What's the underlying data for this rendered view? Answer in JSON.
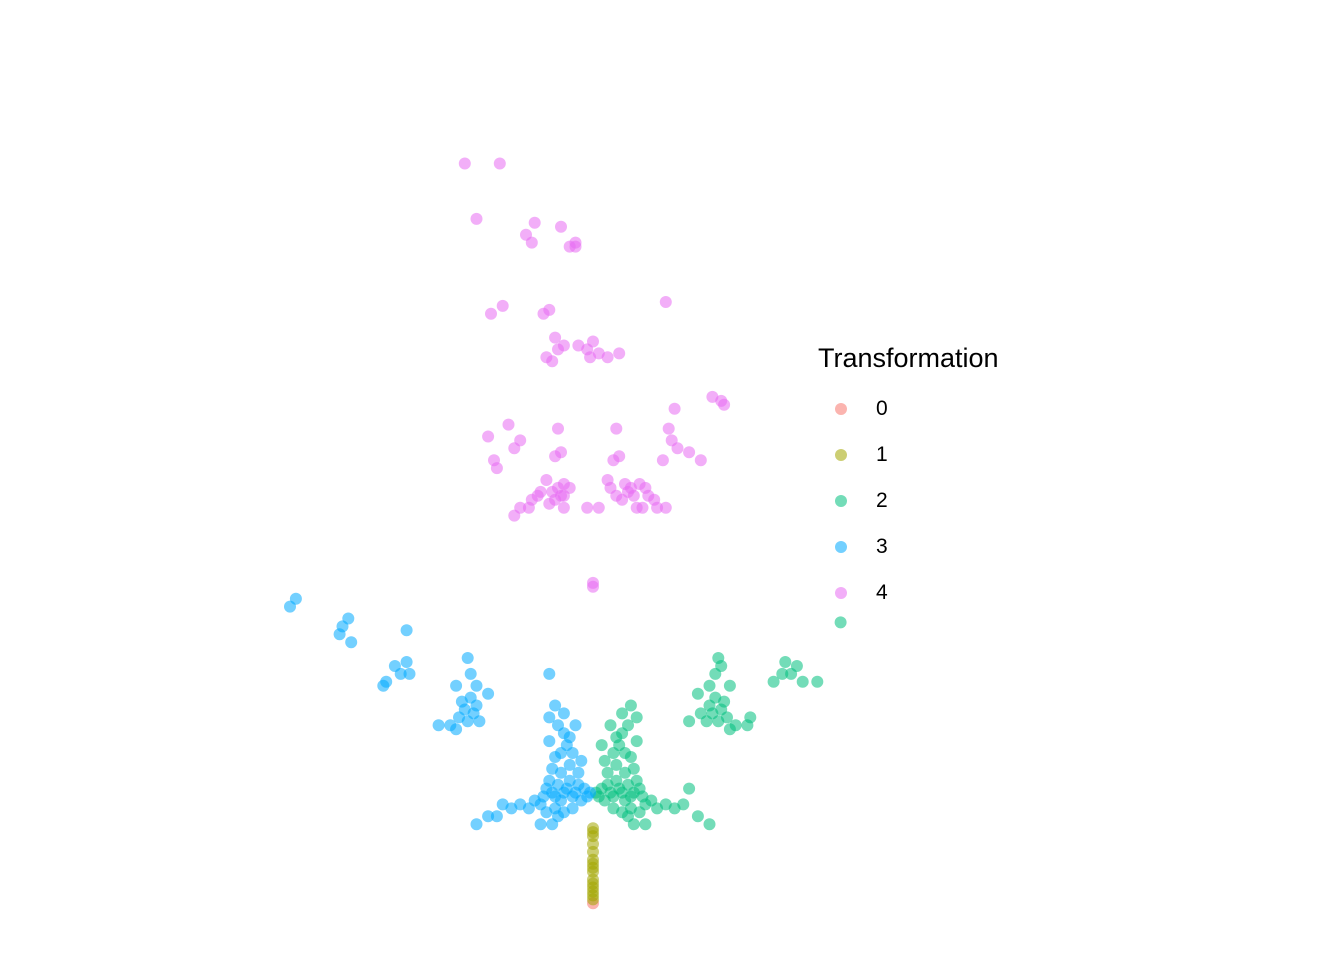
{
  "chart_data": {
    "type": "scatter",
    "title": "",
    "xlabel": "",
    "ylabel": "",
    "axes_visible": false,
    "grid": false,
    "xlim": [
      -1.15,
      1.15
    ],
    "ylim": [
      -0.08,
      2.22
    ],
    "point_alpha": 0.55,
    "legend": {
      "title": "Transformation",
      "position": "right",
      "entries": [
        "0",
        "1",
        "2",
        "3",
        "4"
      ]
    },
    "series": [
      {
        "name": "0",
        "color": "#F8766D",
        "points": [
          [
            0.0,
            0.0
          ]
        ]
      },
      {
        "name": "1",
        "color": "#A3A500",
        "points": [
          [
            0.0,
            0.01
          ],
          [
            0.0,
            0.02
          ],
          [
            0.0,
            0.03
          ],
          [
            0.0,
            0.04
          ],
          [
            0.0,
            0.05
          ],
          [
            0.0,
            0.06
          ],
          [
            0.0,
            0.08
          ],
          [
            0.0,
            0.09
          ],
          [
            0.0,
            0.1
          ],
          [
            0.0,
            0.11
          ],
          [
            0.0,
            0.13
          ],
          [
            0.0,
            0.15
          ],
          [
            0.0,
            0.17
          ],
          [
            0.0,
            0.18
          ],
          [
            0.0,
            0.19
          ]
        ]
      },
      {
        "name": "2",
        "color": "#00BF7D",
        "points": [
          [
            0.01,
            0.28
          ],
          [
            0.02,
            0.27
          ],
          [
            0.03,
            0.29
          ],
          [
            0.04,
            0.26
          ],
          [
            0.05,
            0.3
          ],
          [
            0.06,
            0.28
          ],
          [
            0.07,
            0.27
          ],
          [
            0.08,
            0.31
          ],
          [
            0.09,
            0.29
          ],
          [
            0.1,
            0.28
          ],
          [
            0.11,
            0.26
          ],
          [
            0.12,
            0.3
          ],
          [
            0.13,
            0.27
          ],
          [
            0.14,
            0.28
          ],
          [
            0.15,
            0.31
          ],
          [
            0.16,
            0.29
          ],
          [
            0.17,
            0.27
          ],
          [
            0.18,
            0.25
          ],
          [
            0.05,
            0.33
          ],
          [
            0.08,
            0.35
          ],
          [
            0.11,
            0.33
          ],
          [
            0.14,
            0.34
          ],
          [
            0.07,
            0.24
          ],
          [
            0.1,
            0.23
          ],
          [
            0.13,
            0.24
          ],
          [
            0.16,
            0.23
          ],
          [
            0.2,
            0.26
          ],
          [
            0.22,
            0.24
          ],
          [
            0.25,
            0.25
          ],
          [
            0.28,
            0.24
          ],
          [
            0.31,
            0.25
          ],
          [
            0.36,
            0.22
          ],
          [
            0.4,
            0.2
          ],
          [
            0.12,
            0.22
          ],
          [
            0.14,
            0.2
          ],
          [
            0.09,
            0.4
          ],
          [
            0.1,
            0.43
          ],
          [
            0.12,
            0.45
          ],
          [
            0.08,
            0.42
          ],
          [
            0.15,
            0.41
          ],
          [
            0.11,
            0.38
          ],
          [
            0.07,
            0.38
          ],
          [
            0.13,
            0.37
          ],
          [
            0.15,
            0.47
          ],
          [
            0.1,
            0.48
          ],
          [
            0.13,
            0.5
          ],
          [
            0.06,
            0.45
          ],
          [
            0.4,
            0.5
          ],
          [
            0.41,
            0.48
          ],
          [
            0.43,
            0.46
          ],
          [
            0.44,
            0.49
          ],
          [
            0.42,
            0.52
          ],
          [
            0.45,
            0.51
          ],
          [
            0.46,
            0.47
          ],
          [
            0.39,
            0.46
          ],
          [
            0.47,
            0.44
          ],
          [
            0.49,
            0.45
          ],
          [
            0.53,
            0.45
          ],
          [
            0.47,
            0.55
          ],
          [
            0.4,
            0.55
          ],
          [
            0.42,
            0.58
          ],
          [
            0.36,
            0.53
          ],
          [
            0.33,
            0.46
          ],
          [
            0.37,
            0.48
          ],
          [
            0.54,
            0.47
          ],
          [
            0.44,
            0.6
          ],
          [
            0.43,
            0.62
          ],
          [
            0.65,
            0.58
          ],
          [
            0.66,
            0.61
          ],
          [
            0.68,
            0.58
          ],
          [
            0.7,
            0.6
          ],
          [
            0.72,
            0.56
          ],
          [
            0.62,
            0.56
          ],
          [
            0.77,
            0.56
          ],
          [
            0.85,
            0.71
          ],
          [
            0.04,
            0.36
          ],
          [
            0.03,
            0.4
          ],
          [
            0.18,
            0.2
          ],
          [
            0.33,
            0.29
          ]
        ]
      },
      {
        "name": "3",
        "color": "#00A9FF",
        "points": [
          [
            -0.01,
            0.28
          ],
          [
            -0.02,
            0.27
          ],
          [
            -0.03,
            0.29
          ],
          [
            -0.04,
            0.26
          ],
          [
            -0.05,
            0.3
          ],
          [
            -0.06,
            0.28
          ],
          [
            -0.07,
            0.27
          ],
          [
            -0.08,
            0.31
          ],
          [
            -0.09,
            0.29
          ],
          [
            -0.1,
            0.28
          ],
          [
            -0.11,
            0.26
          ],
          [
            -0.12,
            0.3
          ],
          [
            -0.13,
            0.27
          ],
          [
            -0.14,
            0.28
          ],
          [
            -0.15,
            0.31
          ],
          [
            -0.16,
            0.29
          ],
          [
            -0.17,
            0.27
          ],
          [
            -0.18,
            0.25
          ],
          [
            -0.05,
            0.33
          ],
          [
            -0.08,
            0.35
          ],
          [
            -0.11,
            0.33
          ],
          [
            -0.14,
            0.34
          ],
          [
            -0.07,
            0.24
          ],
          [
            -0.1,
            0.23
          ],
          [
            -0.13,
            0.24
          ],
          [
            -0.16,
            0.23
          ],
          [
            -0.2,
            0.26
          ],
          [
            -0.22,
            0.24
          ],
          [
            -0.25,
            0.25
          ],
          [
            -0.28,
            0.24
          ],
          [
            -0.31,
            0.25
          ],
          [
            -0.36,
            0.22
          ],
          [
            -0.4,
            0.2
          ],
          [
            -0.12,
            0.22
          ],
          [
            -0.14,
            0.2
          ],
          [
            -0.09,
            0.4
          ],
          [
            -0.1,
            0.43
          ],
          [
            -0.12,
            0.45
          ],
          [
            -0.08,
            0.42
          ],
          [
            -0.15,
            0.41
          ],
          [
            -0.11,
            0.38
          ],
          [
            -0.07,
            0.38
          ],
          [
            -0.13,
            0.37
          ],
          [
            -0.15,
            0.47
          ],
          [
            -0.1,
            0.48
          ],
          [
            -0.13,
            0.5
          ],
          [
            -0.06,
            0.45
          ],
          [
            -0.4,
            0.5
          ],
          [
            -0.41,
            0.48
          ],
          [
            -0.43,
            0.46
          ],
          [
            -0.44,
            0.49
          ],
          [
            -0.42,
            0.52
          ],
          [
            -0.45,
            0.51
          ],
          [
            -0.46,
            0.47
          ],
          [
            -0.39,
            0.46
          ],
          [
            -0.47,
            0.44
          ],
          [
            -0.49,
            0.45
          ],
          [
            -0.53,
            0.45
          ],
          [
            -0.47,
            0.55
          ],
          [
            -0.4,
            0.55
          ],
          [
            -0.42,
            0.58
          ],
          [
            -0.36,
            0.53
          ],
          [
            -0.43,
            0.62
          ],
          [
            -0.63,
            0.58
          ],
          [
            -0.64,
            0.61
          ],
          [
            -0.66,
            0.58
          ],
          [
            -0.68,
            0.6
          ],
          [
            -0.71,
            0.56
          ],
          [
            -0.72,
            0.55
          ],
          [
            -0.64,
            0.69
          ],
          [
            -0.83,
            0.66
          ],
          [
            -0.87,
            0.68
          ],
          [
            -0.86,
            0.7
          ],
          [
            -0.84,
            0.72
          ],
          [
            -1.02,
            0.77
          ],
          [
            -1.04,
            0.75
          ],
          [
            -0.04,
            0.36
          ],
          [
            -0.15,
            0.58
          ],
          [
            -0.33,
            0.22
          ],
          [
            -0.18,
            0.2
          ]
        ]
      },
      {
        "name": "4",
        "color": "#E76BF3",
        "points": [
          [
            0.0,
            0.8
          ],
          [
            0.0,
            0.81
          ],
          [
            -0.02,
            1.0
          ],
          [
            0.02,
            1.0
          ],
          [
            -0.1,
            1.0
          ],
          [
            -0.11,
            1.03
          ],
          [
            -0.13,
            1.02
          ],
          [
            -0.14,
            1.04
          ],
          [
            -0.12,
            1.05
          ],
          [
            -0.1,
            1.06
          ],
          [
            -0.15,
            1.01
          ],
          [
            -0.16,
            1.07
          ],
          [
            -0.18,
            1.04
          ],
          [
            -0.19,
            1.03
          ],
          [
            -0.21,
            1.02
          ],
          [
            -0.22,
            1.0
          ],
          [
            -0.25,
            1.0
          ],
          [
            -0.27,
            0.98
          ],
          [
            -0.13,
            1.13
          ],
          [
            -0.11,
            1.14
          ],
          [
            -0.12,
            1.2
          ],
          [
            -0.1,
            1.03
          ],
          [
            -0.08,
            1.05
          ],
          [
            0.08,
            1.03
          ],
          [
            0.1,
            1.02
          ],
          [
            0.12,
            1.04
          ],
          [
            0.14,
            1.03
          ],
          [
            0.11,
            1.06
          ],
          [
            0.13,
            1.05
          ],
          [
            0.15,
            1.0
          ],
          [
            0.16,
            1.06
          ],
          [
            0.18,
            1.05
          ],
          [
            0.19,
            1.03
          ],
          [
            0.21,
            1.02
          ],
          [
            0.22,
            1.0
          ],
          [
            0.25,
            1.0
          ],
          [
            0.09,
            1.13
          ],
          [
            0.07,
            1.12
          ],
          [
            0.08,
            1.2
          ],
          [
            0.05,
            1.07
          ],
          [
            0.06,
            1.05
          ],
          [
            0.17,
            1.0
          ],
          [
            -0.25,
            1.17
          ],
          [
            -0.27,
            1.15
          ],
          [
            -0.29,
            1.21
          ],
          [
            -0.36,
            1.18
          ],
          [
            -0.33,
            1.1
          ],
          [
            -0.34,
            1.12
          ],
          [
            0.27,
            1.17
          ],
          [
            0.29,
            1.15
          ],
          [
            0.26,
            1.2
          ],
          [
            0.28,
            1.25
          ],
          [
            0.24,
            1.12
          ],
          [
            0.37,
            1.12
          ],
          [
            0.33,
            1.14
          ],
          [
            0.41,
            1.28
          ],
          [
            0.44,
            1.27
          ],
          [
            0.45,
            1.26
          ],
          [
            -0.02,
            1.4
          ],
          [
            0.02,
            1.39
          ],
          [
            -0.01,
            1.38
          ],
          [
            -0.05,
            1.41
          ],
          [
            -0.1,
            1.41
          ],
          [
            -0.12,
            1.4
          ],
          [
            -0.16,
            1.38
          ],
          [
            -0.14,
            1.37
          ],
          [
            -0.13,
            1.43
          ],
          [
            -0.15,
            1.5
          ],
          [
            -0.17,
            1.49
          ],
          [
            0.0,
            1.42
          ],
          [
            0.09,
            1.39
          ],
          [
            0.05,
            1.38
          ],
          [
            0.25,
            1.52
          ],
          [
            -0.35,
            1.49
          ],
          [
            -0.31,
            1.51
          ],
          [
            -0.4,
            1.73
          ],
          [
            -0.2,
            1.72
          ],
          [
            -0.23,
            1.69
          ],
          [
            -0.21,
            1.67
          ],
          [
            -0.11,
            1.71
          ],
          [
            -0.06,
            1.66
          ],
          [
            -0.06,
            1.67
          ],
          [
            -0.08,
            1.66
          ],
          [
            -0.44,
            1.87
          ],
          [
            -0.32,
            1.87
          ]
        ]
      }
    ]
  }
}
